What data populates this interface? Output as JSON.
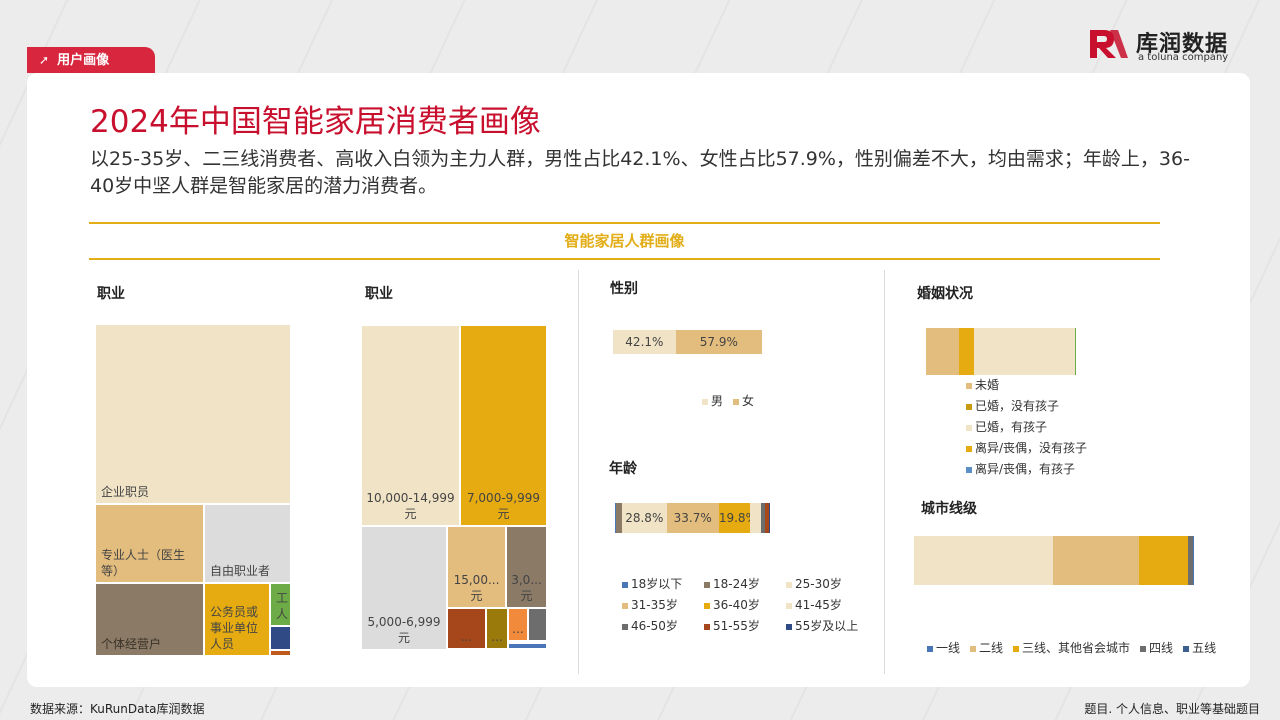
{
  "header": {
    "tag": "用户画像",
    "logo_name": "库润数据",
    "logo_sub": "a toluna company"
  },
  "title": "2024年中国智能家居消费者画像",
  "subtitle": "以25-35岁、二三线消费者、高收入白领为主力人群，男性占比42.1%、女性占比57.9%，性别偏差不大，均由需求；年龄上，36-40岁中坚人群是智能家居的潜力消费者。",
  "band_title": "智能家居人群画像",
  "colors": {
    "brand_red": "#d7263d",
    "gold": "#e2ad16"
  },
  "chart_data": [
    {
      "type": "treemap",
      "title": "职业",
      "items": [
        {
          "label": "企业职员",
          "color": "#f1e4c6"
        },
        {
          "label": "专业人士（医生等）",
          "color": "#e3bd7e"
        },
        {
          "label": "自由职业者",
          "color": "#dcdcdc"
        },
        {
          "label": "个体经营户",
          "color": "#8a7a66"
        },
        {
          "label": "公务员或事业单位人员",
          "color": "#e5ab11"
        },
        {
          "label": "工人",
          "color": "#6cab45"
        },
        {
          "label": "",
          "color": "#2f4a85"
        },
        {
          "label": "",
          "color": "#c05a1c"
        }
      ]
    },
    {
      "type": "treemap",
      "title": "职业",
      "items": [
        {
          "label": "10,000-14,999元",
          "color": "#f1e4c6"
        },
        {
          "label": "7,000-9,999元",
          "color": "#e5ab11"
        },
        {
          "label": "5,000-6,999元",
          "color": "#dcdcdc"
        },
        {
          "label": "15,00...元",
          "color": "#e3bd7e"
        },
        {
          "label": "3,0...元",
          "color": "#8a7a66"
        },
        {
          "label": "...",
          "color": "#a6461b"
        },
        {
          "label": "...",
          "color": "#9b7a0c"
        },
        {
          "label": "...",
          "color": "#f28a3b"
        },
        {
          "label": "",
          "color": "#6d6d6d"
        },
        {
          "label": "",
          "color": "#4a76b8"
        }
      ]
    },
    {
      "type": "bar",
      "title": "性别",
      "stacked": true,
      "series": [
        {
          "name": "男",
          "value": 42.1,
          "label": "42.1%",
          "color": "#f1e4c6"
        },
        {
          "name": "女",
          "value": 57.9,
          "label": "57.9%",
          "color": "#e3bd7e"
        }
      ]
    },
    {
      "type": "bar",
      "title": "年龄",
      "stacked": true,
      "series": [
        {
          "name": "18岁以下",
          "value": 0.5,
          "label": "",
          "color": "#4a76b8"
        },
        {
          "name": "18-24岁",
          "value": 4.0,
          "label": "",
          "color": "#8a7a66"
        },
        {
          "name": "25-30岁",
          "value": 28.8,
          "label": "28.8%",
          "color": "#f1e4c6"
        },
        {
          "name": "31-35岁",
          "value": 33.7,
          "label": "33.7%",
          "color": "#e3bd7e"
        },
        {
          "name": "36-40岁",
          "value": 19.8,
          "label": "19.8%",
          "color": "#e5ab11"
        },
        {
          "name": "41-45岁",
          "value": 7.5,
          "label": "",
          "color": "#f1e4c6"
        },
        {
          "name": "46-50岁",
          "value": 2.7,
          "label": "",
          "color": "#6d6d6d"
        },
        {
          "name": "51-55岁",
          "value": 2.5,
          "label": "",
          "color": "#a6461b"
        },
        {
          "name": "55岁及以上",
          "value": 0.5,
          "label": "",
          "color": "#2f4a85"
        }
      ]
    },
    {
      "type": "bar",
      "title": "婚姻状况",
      "stacked": true,
      "series": [
        {
          "name": "未婚",
          "value": 22,
          "color": "#e3bd7e"
        },
        {
          "name": "已婚，没有孩子",
          "value": 10,
          "color": "#e5ab11"
        },
        {
          "name": "已婚，有孩子",
          "value": 67,
          "color": "#f1e4c6"
        },
        {
          "name": "离异/丧偶，没有孩子",
          "value": 0.5,
          "color": "#e5ab11"
        },
        {
          "name": "离异/丧偶，有孩子",
          "value": 0.5,
          "color": "#6cab45"
        }
      ],
      "legend_colors": [
        "#e3bd7e",
        "#c89a0e",
        "#f1e4c6",
        "#e5ab11",
        "#5b8fc7"
      ]
    },
    {
      "type": "bar",
      "title": "城市线级",
      "stacked": true,
      "series": [
        {
          "name": "一线",
          "value": 50,
          "color": "#f1e4c6"
        },
        {
          "name": "二线",
          "value": 31,
          "color": "#e3bd7e"
        },
        {
          "name": "三线、其他省会城市",
          "value": 18,
          "color": "#e5ab11"
        },
        {
          "name": "四线",
          "value": 1.5,
          "color": "#6d6d6d"
        },
        {
          "name": "五线",
          "value": 0.5,
          "color": "#4a76b8"
        }
      ],
      "legend_colors": [
        "#4a76b8",
        "#e3bd7e",
        "#e5ab11",
        "#6d6d6d",
        "#3b5f8f"
      ]
    }
  ],
  "footer": {
    "source": "数据来源：KuRunData库润数据",
    "note": "题目. 个人信息、职业等基础题目"
  }
}
